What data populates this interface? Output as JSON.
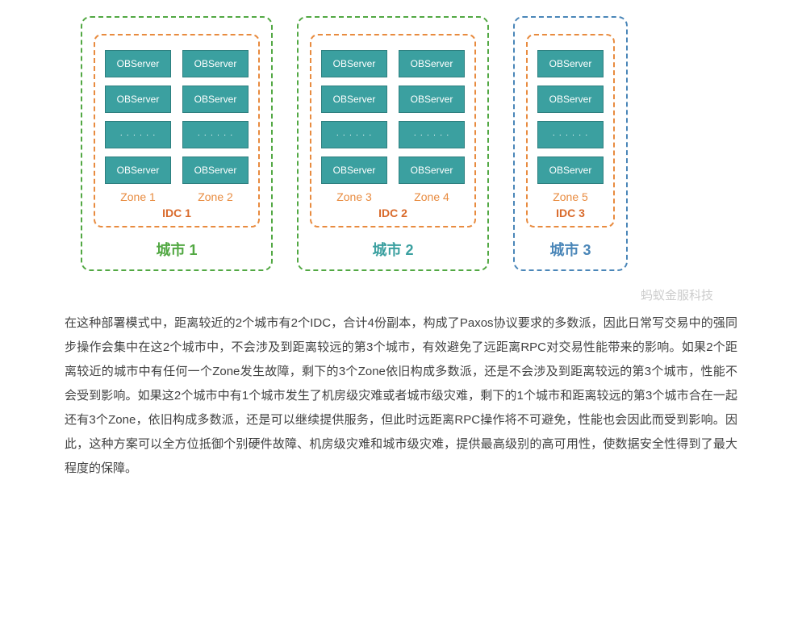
{
  "diagram": {
    "server_label": "OBServer",
    "ellipsis": "· · · · · ·",
    "colors": {
      "city1_border": "#52a843",
      "city2_border": "#52a843",
      "city3_border": "#4a86b8",
      "idc_border": "#e88b3f",
      "server_bg": "#3ba0a0",
      "server_border": "#2e7f7f",
      "server_text": "#ffffff",
      "zone_label": "#e88b3f",
      "idc_label": "#d96a2b",
      "city_label_green": "#52a843",
      "city_label_teal": "#3ba0a0",
      "city_label_blue": "#4a86b8"
    },
    "cities": [
      {
        "name": "城市 1",
        "idc": "IDC 1",
        "zones": [
          "Zone 1",
          "Zone 2"
        ],
        "cols": 2,
        "border_key": "city1_border",
        "label_color_key": "city_label_green"
      },
      {
        "name": "城市 2",
        "idc": "IDC 2",
        "zones": [
          "Zone 3",
          "Zone 4"
        ],
        "cols": 2,
        "border_key": "city2_border",
        "label_color_key": "city_label_teal"
      },
      {
        "name": "城市 3",
        "idc": "IDC 3",
        "zones": [
          "Zone 5"
        ],
        "cols": 1,
        "border_key": "city3_border",
        "label_color_key": "city_label_blue"
      }
    ],
    "rows_per_zone": 4,
    "ellipsis_row_index": 2
  },
  "watermark": "蚂蚁金服科技",
  "paragraph": "在这种部署模式中，距离较近的2个城市有2个IDC，合计4份副本，构成了Paxos协议要求的多数派，因此日常写交易中的强同步操作会集中在这2个城市中，不会涉及到距离较远的第3个城市，有效避免了远距离RPC对交易性能带来的影响。如果2个距离较近的城市中有任何一个Zone发生故障，剩下的3个Zone依旧构成多数派，还是不会涉及到距离较远的第3个城市，性能不会受到影响。如果这2个城市中有1个城市发生了机房级灾难或者城市级灾难，剩下的1个城市和距离较远的第3个城市合在一起还有3个Zone，依旧构成多数派，还是可以继续提供服务，但此时远距离RPC操作将不可避免，性能也会因此而受到影响。因此，这种方案可以全方位抵御个别硬件故障、机房级灾难和城市级灾难，提供最高级别的高可用性，使数据安全性得到了最大程度的保障。"
}
